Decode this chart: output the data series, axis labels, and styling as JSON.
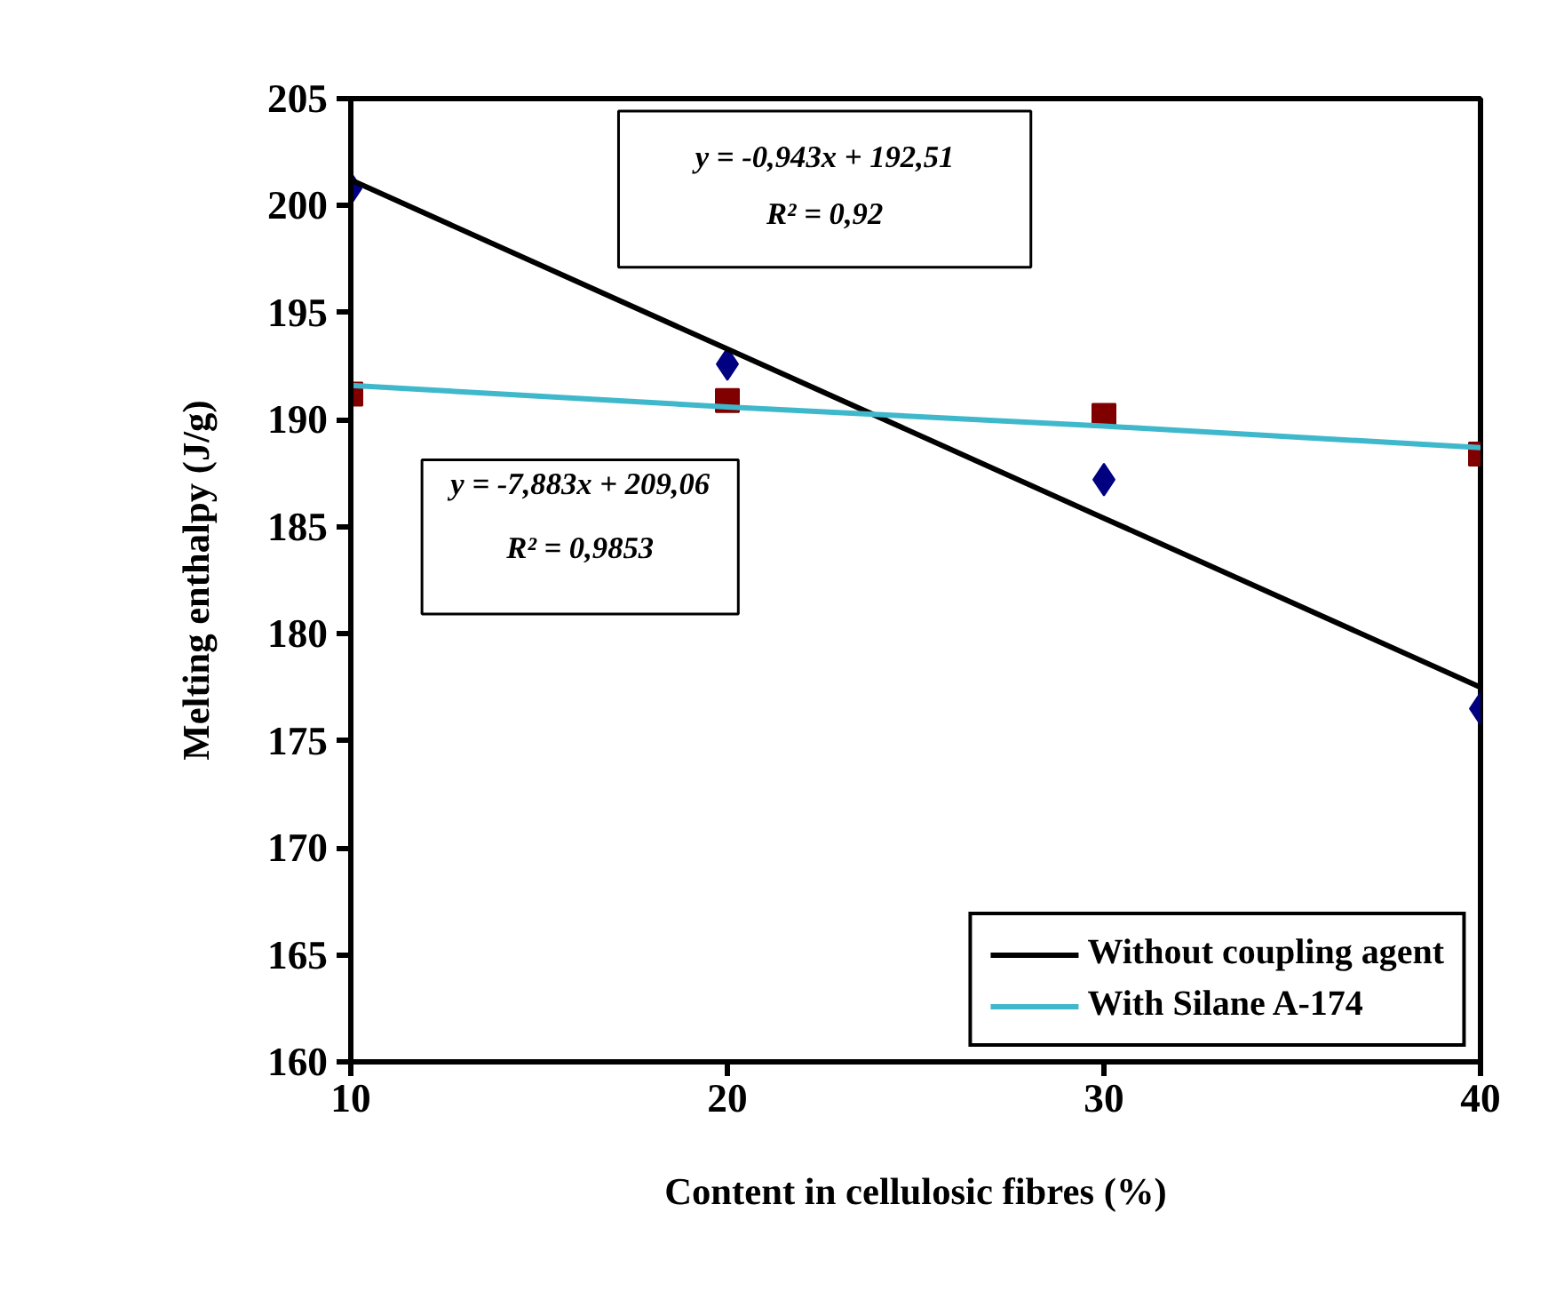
{
  "chart_data": {
    "type": "scatter",
    "xlabel": "Content in cellulosic fibres (%)",
    "ylabel": "Melting enthalpy (J/g)",
    "x": [
      10,
      20,
      30,
      40
    ],
    "series": [
      {
        "color": "#000080",
        "marker": "diamond",
        "values": [
          200.8,
          192.6,
          187.2,
          176.5
        ]
      },
      {
        "color": "#800000",
        "marker": "square",
        "values": [
          191.2,
          190.9,
          190.2,
          188.4
        ]
      },
      {
        "type": "line",
        "name": "Without coupling agent",
        "color": "#000000",
        "marker": "none",
        "values": [
          201.2,
          193.3,
          185.4,
          177.5
        ]
      },
      {
        "type": "line",
        "name": "With Silane A-174",
        "color": "#40b8cc",
        "marker": "none",
        "values": [
          191.6,
          190.6,
          189.7,
          188.7
        ]
      }
    ],
    "annotations": [
      "y = -0,943x + 192,51",
      "R² = 0,92",
      "y = -7,883x + 209,06",
      "R² = 0,9853"
    ],
    "xlim": [
      10,
      40
    ],
    "xticks": [
      10,
      20,
      30,
      40
    ],
    "ylim": [
      160,
      205
    ],
    "yticks": [
      160,
      165,
      170,
      175,
      180,
      185,
      190,
      195,
      200,
      205
    ],
    "grid": false,
    "legend": "bottom right"
  }
}
